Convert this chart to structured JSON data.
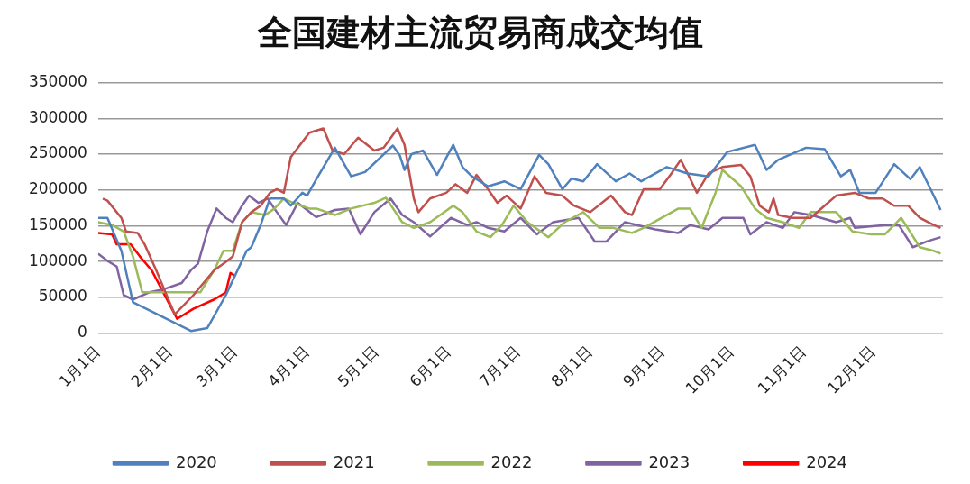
{
  "chart_data": {
    "type": "line",
    "title": "全国建材主流贸易商成交均值",
    "xlim": [
      "--01-01",
      "--12-31"
    ],
    "xticks": [
      {
        "value": "--01-01",
        "label": "1月1日"
      },
      {
        "value": "--02-01",
        "label": "2月1日"
      },
      {
        "value": "--03-01",
        "label": "3月1日"
      },
      {
        "value": "--04-01",
        "label": "4月1日"
      },
      {
        "value": "--05-01",
        "label": "5月1日"
      },
      {
        "value": "--06-01",
        "label": "6月1日"
      },
      {
        "value": "--07-01",
        "label": "7月1日"
      },
      {
        "value": "--08-01",
        "label": "8月1日"
      },
      {
        "value": "--09-01",
        "label": "9月1日"
      },
      {
        "value": "--10-01",
        "label": "10月1日"
      },
      {
        "value": "--11-01",
        "label": "11月1日"
      },
      {
        "value": "--12-01",
        "label": "12月1日"
      }
    ],
    "ylim": [
      0,
      350000
    ],
    "yticks": [
      0,
      50000,
      100000,
      150000,
      200000,
      250000,
      300000,
      350000
    ],
    "grid": "y",
    "legend": "bottom",
    "marker": "none",
    "line_style": "solid",
    "series": [
      {
        "name": "2020",
        "color": "#4f81bd",
        "x": [
          "--01-01",
          "--01-05",
          "--01-11",
          "--01-16",
          "--02-10",
          "--02-17",
          "--02-25",
          "--03-06",
          "--03-08",
          "--03-12",
          "--03-16",
          "--03-22",
          "--03-25",
          "--03-30",
          "--04-01",
          "--04-05",
          "--04-13",
          "--04-20",
          "--04-26",
          "--05-08",
          "--05-11",
          "--05-13",
          "--05-16",
          "--05-21",
          "--05-27",
          "--06-03",
          "--06-07",
          "--06-11",
          "--06-18",
          "--06-25",
          "--07-02",
          "--07-10",
          "--07-14",
          "--07-20",
          "--07-24",
          "--07-29",
          "--08-04",
          "--08-12",
          "--08-18",
          "--08-23",
          "--09-03",
          "--09-12",
          "--09-21",
          "--09-29",
          "--10-11",
          "--10-16",
          "--10-21",
          "--11-02",
          "--11-10",
          "--11-17",
          "--11-21",
          "--11-25",
          "--12-02",
          "--12-10",
          "--12-17",
          "--12-21",
          "--12-30"
        ],
        "values": [
          161000,
          161000,
          115000,
          43000,
          3000,
          7000,
          53000,
          115000,
          120000,
          151000,
          188000,
          188000,
          178000,
          196000,
          192000,
          215000,
          259000,
          219000,
          225000,
          262000,
          248000,
          228000,
          250000,
          255000,
          221000,
          263000,
          232000,
          219000,
          205000,
          212000,
          201000,
          249000,
          236000,
          201000,
          216000,
          212000,
          236000,
          212000,
          223000,
          212000,
          232000,
          223000,
          219000,
          253000,
          263000,
          228000,
          242000,
          259000,
          257000,
          219000,
          228000,
          196000,
          196000,
          236000,
          215000,
          232000,
          172000
        ]
      },
      {
        "name": "2021",
        "color": "#c0504d",
        "x": [
          "--01-03",
          "--01-05",
          "--01-11",
          "--01-13",
          "--01-18",
          "--01-21",
          "--01-26",
          "--02-03",
          "--02-11",
          "--02-20",
          "--02-24",
          "--02-28",
          "--03-04",
          "--03-08",
          "--03-12",
          "--03-16",
          "--03-19",
          "--03-22",
          "--03-25",
          "--03-29",
          "--04-02",
          "--04-08",
          "--04-12",
          "--04-17",
          "--04-23",
          "--04-30",
          "--05-04",
          "--05-10",
          "--05-13",
          "--05-17",
          "--05-19",
          "--05-24",
          "--05-31",
          "--06-04",
          "--06-09",
          "--06-13",
          "--06-18",
          "--06-22",
          "--06-26",
          "--07-02",
          "--07-08",
          "--07-13",
          "--07-20",
          "--07-25",
          "--08-01",
          "--08-10",
          "--08-16",
          "--08-19",
          "--08-24",
          "--08-31",
          "--09-05",
          "--09-09",
          "--09-12",
          "--09-16",
          "--09-21",
          "--09-27",
          "--10-05",
          "--10-09",
          "--10-13",
          "--10-17",
          "--10-19",
          "--10-21",
          "--10-27",
          "--11-04",
          "--11-10",
          "--11-15",
          "--11-23",
          "--11-29",
          "--12-05",
          "--12-10",
          "--12-16",
          "--12-21",
          "--12-27",
          "--12-30"
        ],
        "values": [
          188000,
          185000,
          161000,
          142000,
          140000,
          124000,
          88000,
          26000,
          53000,
          88000,
          97000,
          107000,
          155000,
          169000,
          178000,
          196000,
          201000,
          196000,
          246000,
          263000,
          280000,
          286000,
          255000,
          250000,
          273000,
          255000,
          259000,
          286000,
          263000,
          188000,
          169000,
          188000,
          196000,
          208000,
          196000,
          221000,
          201000,
          182000,
          192000,
          174000,
          219000,
          196000,
          192000,
          178000,
          169000,
          192000,
          169000,
          165000,
          201000,
          201000,
          223000,
          242000,
          223000,
          196000,
          223000,
          232000,
          235000,
          219000,
          178000,
          169000,
          188000,
          165000,
          161000,
          161000,
          178000,
          192000,
          196000,
          188000,
          188000,
          178000,
          178000,
          161000,
          151000,
          147000
        ]
      },
      {
        "name": "2022",
        "color": "#9bbb59",
        "x": [
          "--01-01",
          "--01-07",
          "--01-12",
          "--01-16",
          "--01-20",
          "--01-29",
          "--02-09",
          "--02-14",
          "--02-20",
          "--02-24",
          "--02-28",
          "--03-04",
          "--03-08",
          "--03-14",
          "--03-18",
          "--03-22",
          "--03-26",
          "--04-02",
          "--04-05",
          "--04-13",
          "--04-20",
          "--04-30",
          "--05-05",
          "--05-12",
          "--05-17",
          "--05-24",
          "--06-03",
          "--06-07",
          "--06-13",
          "--06-19",
          "--06-24",
          "--06-29",
          "--07-05",
          "--07-14",
          "--07-21",
          "--07-29",
          "--08-05",
          "--08-11",
          "--08-19",
          "--08-24",
          "--09-08",
          "--09-13",
          "--09-18",
          "--09-24",
          "--09-27",
          "--10-05",
          "--10-11",
          "--10-16",
          "--10-23",
          "--10-30",
          "--11-04",
          "--11-10",
          "--11-15",
          "--11-22",
          "--11-30",
          "--12-06",
          "--12-13",
          "--12-21",
          "--12-27",
          "--12-30"
        ],
        "values": [
          155000,
          151000,
          142000,
          107000,
          57000,
          57000,
          57000,
          57000,
          88000,
          115000,
          115000,
          155000,
          169000,
          165000,
          174000,
          188000,
          182000,
          174000,
          174000,
          165000,
          174000,
          182000,
          189000,
          155000,
          147000,
          155000,
          178000,
          169000,
          142000,
          134000,
          151000,
          178000,
          155000,
          134000,
          155000,
          169000,
          147000,
          147000,
          140000,
          147000,
          174000,
          174000,
          147000,
          196000,
          228000,
          205000,
          174000,
          161000,
          155000,
          147000,
          169000,
          169000,
          169000,
          142000,
          138000,
          138000,
          161000,
          120000,
          115000,
          111000
        ]
      },
      {
        "name": "2023",
        "color": "#8064a2",
        "x": [
          "--01-01",
          "--01-05",
          "--01-09",
          "--01-12",
          "--01-16",
          "--01-23",
          "--01-29",
          "--02-06",
          "--02-10",
          "--02-13",
          "--02-17",
          "--02-21",
          "--02-25",
          "--02-28",
          "--03-04",
          "--03-07",
          "--03-11",
          "--03-15",
          "--03-19",
          "--03-23",
          "--03-28",
          "--04-05",
          "--04-13",
          "--04-19",
          "--04-24",
          "--04-30",
          "--05-07",
          "--05-12",
          "--05-17",
          "--05-24",
          "--06-02",
          "--06-09",
          "--06-13",
          "--06-18",
          "--06-25",
          "--07-02",
          "--07-09",
          "--07-16",
          "--07-27",
          "--08-03",
          "--08-08",
          "--08-16",
          "--08-29",
          "--09-08",
          "--09-13",
          "--09-21",
          "--09-27",
          "--10-06",
          "--10-09",
          "--10-16",
          "--10-23",
          "--10-28",
          "--11-04",
          "--11-15",
          "--11-21",
          "--11-23",
          "--12-06",
          "--12-12",
          "--12-18",
          "--12-24",
          "--12-30"
        ],
        "values": [
          111000,
          101000,
          93000,
          53000,
          47000,
          57000,
          61000,
          70000,
          88000,
          97000,
          142000,
          174000,
          161000,
          155000,
          178000,
          192000,
          182000,
          188000,
          169000,
          151000,
          182000,
          162000,
          172000,
          174000,
          138000,
          169000,
          188000,
          165000,
          155000,
          135000,
          161000,
          151000,
          155000,
          147000,
          142000,
          161000,
          138000,
          155000,
          161000,
          128000,
          128000,
          155000,
          145000,
          140000,
          151000,
          145000,
          161000,
          161000,
          138000,
          155000,
          147000,
          169000,
          165000,
          155000,
          161000,
          147000,
          151000,
          151000,
          120000,
          128000,
          134000
        ]
      },
      {
        "name": "2024",
        "color": "#ff0000",
        "x": [
          "--01-01",
          "--01-07",
          "--01-09",
          "--01-15",
          "--01-19",
          "--01-24",
          "--02-04",
          "--02-11",
          "--02-20",
          "--02-25",
          "--02-27",
          "--03-01"
        ],
        "values": [
          140000,
          138000,
          124000,
          124000,
          107000,
          88000,
          20000,
          34000,
          47000,
          57000,
          84000,
          80000
        ]
      }
    ]
  }
}
